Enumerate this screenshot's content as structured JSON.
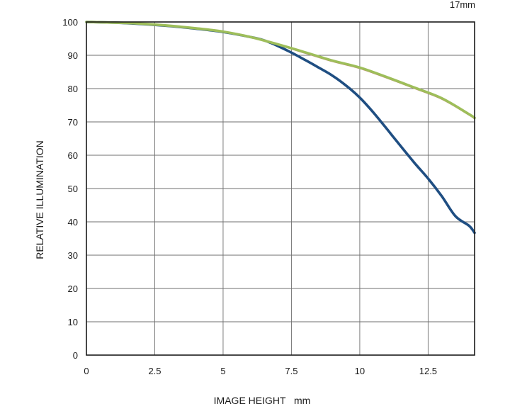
{
  "chart_data": {
    "type": "line",
    "title": "",
    "focal_length_label": "17mm",
    "xlabel": "IMAGE HEIGHT   mm",
    "ylabel": "RELATIVE ILLUMINATION",
    "xlim": [
      0,
      14.2
    ],
    "ylim": [
      0,
      100
    ],
    "x_ticks": [
      0,
      2.5,
      5,
      7.5,
      10,
      12.5
    ],
    "x_tick_labels": [
      "0",
      "2.5",
      "5",
      "7.5",
      "10",
      "12.5"
    ],
    "y_ticks": [
      0,
      10,
      20,
      30,
      40,
      50,
      60,
      70,
      80,
      90,
      100
    ],
    "y_tick_labels": [
      "0",
      "10",
      "20",
      "30",
      "40",
      "50",
      "60",
      "70",
      "80",
      "90",
      "100"
    ],
    "grid": true,
    "series": [
      {
        "color": "#1f4e82",
        "x": [
          0,
          1,
          2,
          3,
          4,
          5,
          6,
          6.5,
          7,
          7.5,
          8,
          8.5,
          9,
          9.5,
          10,
          10.5,
          11,
          11.5,
          12,
          12.5,
          13,
          13.5,
          14,
          14.2
        ],
        "y": [
          100,
          99.8,
          99.4,
          98.8,
          98,
          97,
          95.5,
          94.5,
          92.8,
          90.8,
          88.6,
          86.3,
          83.9,
          80.9,
          77.3,
          72.8,
          67.8,
          62.7,
          57.7,
          53,
          47.7,
          41.7,
          38.8,
          36.7
        ]
      },
      {
        "color": "#c46a6a",
        "x": [
          0,
          1,
          2,
          3,
          4,
          5,
          6,
          7,
          8,
          9,
          10,
          11,
          12,
          13,
          14,
          14.2
        ],
        "y": [
          100,
          99.8,
          99.5,
          98.9,
          98.1,
          97.1,
          95.4,
          93.2,
          90.7,
          88.2,
          86.1,
          83.2,
          80.1,
          76.9,
          72.1,
          71
        ]
      },
      {
        "color": "#9ebe5a",
        "x": [
          0,
          1,
          2,
          3,
          4,
          5,
          6,
          7,
          8,
          9,
          10,
          11,
          12,
          13,
          14,
          14.2
        ],
        "y": [
          100,
          99.8,
          99.5,
          98.9,
          98.1,
          97.1,
          95.5,
          93.3,
          90.9,
          88.4,
          86.3,
          83.4,
          80.3,
          77.1,
          72.3,
          71.2
        ]
      }
    ]
  }
}
